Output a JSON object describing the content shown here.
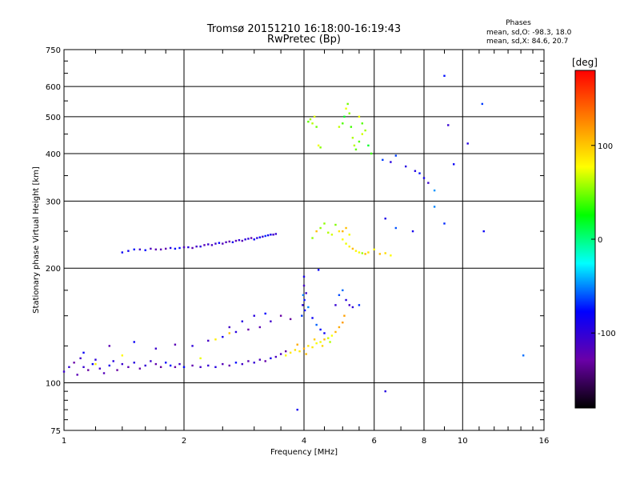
{
  "chart_data": {
    "type": "scatter",
    "title": "Tromsø 20151210 16:18:00-16:19:43",
    "subtitle": "RwPretec (Bp)",
    "stats": {
      "heading": "Phases",
      "line_o": "mean, sd,O: -98.3, 18.0",
      "line_x": "mean, sd,X: 84.6, 20.7"
    },
    "xlabel": "Frequency [MHz]",
    "ylabel": "Stationary phase Virtual Height [km]",
    "x_scale": "log",
    "y_scale": "log",
    "xlim": [
      1,
      16
    ],
    "ylim": [
      75,
      750
    ],
    "x_ticks": [
      1,
      2,
      4,
      6,
      8,
      10,
      16
    ],
    "x_tick_labels": [
      "1",
      "2",
      "4",
      "6",
      "8",
      "10",
      "16"
    ],
    "y_ticks": [
      75,
      100,
      200,
      300,
      400,
      500,
      600,
      750
    ],
    "y_tick_labels": [
      "75",
      "100",
      "200",
      "300",
      "400",
      "500",
      "600",
      "750"
    ],
    "grid": true,
    "colorbar": {
      "label": "[deg]",
      "min": -180,
      "max": 180,
      "ticks": [
        100,
        0,
        -100
      ],
      "tick_labels": [
        "100",
        "0",
        "-100"
      ],
      "stops": [
        "#000000",
        "#6a00a8",
        "#0000ff",
        "#00ffff",
        "#00ff00",
        "#ffff00",
        "#ff8000",
        "#ff0000"
      ]
    },
    "series": [
      {
        "trace": "low_blue_echo",
        "phase": -105,
        "points": [
          [
            1.0,
            107
          ],
          [
            1.03,
            110
          ],
          [
            1.06,
            113
          ],
          [
            1.08,
            105
          ],
          [
            1.1,
            116
          ],
          [
            1.12,
            110
          ],
          [
            1.15,
            108
          ],
          [
            1.18,
            112
          ],
          [
            1.2,
            115
          ],
          [
            1.23,
            109
          ],
          [
            1.26,
            106
          ],
          [
            1.3,
            111
          ],
          [
            1.33,
            114
          ],
          [
            1.36,
            108
          ],
          [
            1.4,
            112
          ],
          [
            1.45,
            110
          ],
          [
            1.5,
            113
          ],
          [
            1.55,
            109
          ],
          [
            1.6,
            111
          ],
          [
            1.65,
            114
          ],
          [
            1.7,
            112
          ],
          [
            1.75,
            110
          ],
          [
            1.8,
            113
          ],
          [
            1.85,
            111
          ],
          [
            1.9,
            110
          ],
          [
            1.95,
            112
          ],
          [
            2.0,
            110
          ],
          [
            2.1,
            111
          ],
          [
            2.2,
            110
          ],
          [
            2.3,
            111
          ],
          [
            2.4,
            110
          ],
          [
            2.5,
            112
          ],
          [
            2.6,
            111
          ],
          [
            2.7,
            113
          ],
          [
            2.8,
            112
          ],
          [
            2.9,
            114
          ],
          [
            3.0,
            113
          ],
          [
            3.1,
            115
          ],
          [
            3.2,
            114
          ],
          [
            3.3,
            116
          ],
          [
            3.4,
            117
          ],
          [
            3.5,
            119
          ],
          [
            3.6,
            121
          ],
          [
            1.12,
            120
          ],
          [
            1.3,
            125
          ],
          [
            1.5,
            128
          ],
          [
            1.7,
            123
          ],
          [
            1.9,
            126
          ],
          [
            2.1,
            125
          ],
          [
            2.3,
            129
          ],
          [
            2.5,
            132
          ],
          [
            2.7,
            136
          ],
          [
            2.9,
            138
          ],
          [
            3.1,
            140
          ],
          [
            3.3,
            145
          ],
          [
            3.5,
            150
          ],
          [
            3.7,
            147
          ],
          [
            2.6,
            140
          ],
          [
            2.8,
            145
          ],
          [
            3.0,
            150
          ],
          [
            3.2,
            152
          ]
        ]
      },
      {
        "trace": "low_yellow_echo",
        "phase": 90,
        "points": [
          [
            3.6,
            118
          ],
          [
            3.7,
            120
          ],
          [
            3.8,
            122
          ],
          [
            3.9,
            121
          ],
          [
            4.0,
            123
          ],
          [
            4.1,
            125
          ],
          [
            4.2,
            124
          ],
          [
            4.3,
            127
          ],
          [
            4.4,
            128
          ],
          [
            4.5,
            130
          ],
          [
            4.6,
            131
          ],
          [
            4.7,
            133
          ],
          [
            4.8,
            136
          ],
          [
            4.9,
            140
          ],
          [
            5.0,
            144
          ],
          [
            5.05,
            150
          ],
          [
            3.85,
            126
          ],
          [
            4.05,
            119
          ],
          [
            4.25,
            130
          ],
          [
            4.45,
            125
          ],
          [
            4.65,
            128
          ],
          [
            1.4,
            118
          ],
          [
            1.2,
            112
          ],
          [
            2.2,
            116
          ],
          [
            2.4,
            130
          ],
          [
            2.6,
            135
          ]
        ]
      },
      {
        "trace": "vertical_rise",
        "phase": -80,
        "points": [
          [
            3.95,
            150
          ],
          [
            3.97,
            160
          ],
          [
            3.98,
            170
          ],
          [
            4.0,
            180
          ],
          [
            4.0,
            190
          ],
          [
            4.01,
            165
          ],
          [
            4.02,
            155
          ],
          [
            4.05,
            172
          ],
          [
            4.1,
            158
          ],
          [
            4.2,
            148
          ],
          [
            4.3,
            142
          ],
          [
            4.4,
            138
          ],
          [
            4.5,
            135
          ],
          [
            4.8,
            160
          ],
          [
            4.9,
            170
          ],
          [
            5.0,
            175
          ],
          [
            5.1,
            165
          ],
          [
            5.2,
            160
          ],
          [
            5.3,
            158
          ],
          [
            5.5,
            160
          ]
        ]
      },
      {
        "trace": "f_layer_trace",
        "phase": -95,
        "points": [
          [
            1.4,
            220
          ],
          [
            1.45,
            222
          ],
          [
            1.5,
            224
          ],
          [
            1.55,
            224
          ],
          [
            1.6,
            223
          ],
          [
            1.65,
            225
          ],
          [
            1.7,
            224
          ],
          [
            1.75,
            224
          ],
          [
            1.8,
            225
          ],
          [
            1.85,
            226
          ],
          [
            1.9,
            225
          ],
          [
            1.95,
            226
          ],
          [
            2.0,
            227
          ],
          [
            2.05,
            227
          ],
          [
            2.1,
            226
          ],
          [
            2.15,
            228
          ],
          [
            2.2,
            228
          ],
          [
            2.25,
            230
          ],
          [
            2.3,
            231
          ],
          [
            2.35,
            230
          ],
          [
            2.4,
            232
          ],
          [
            2.45,
            233
          ],
          [
            2.5,
            232
          ],
          [
            2.55,
            234
          ],
          [
            2.6,
            235
          ],
          [
            2.65,
            234
          ],
          [
            2.7,
            236
          ],
          [
            2.75,
            237
          ],
          [
            2.8,
            236
          ],
          [
            2.85,
            238
          ],
          [
            2.9,
            239
          ],
          [
            2.95,
            240
          ],
          [
            3.0,
            238
          ],
          [
            3.05,
            240
          ],
          [
            3.1,
            241
          ],
          [
            3.15,
            242
          ],
          [
            3.2,
            243
          ],
          [
            3.25,
            244
          ],
          [
            3.3,
            245
          ],
          [
            3.35,
            245
          ],
          [
            3.4,
            246
          ]
        ]
      },
      {
        "trace": "scatter_4_to_6mhz_lower",
        "phase": 80,
        "points": [
          [
            4.2,
            240
          ],
          [
            4.3,
            250
          ],
          [
            4.4,
            255
          ],
          [
            4.5,
            262
          ],
          [
            4.6,
            248
          ],
          [
            4.7,
            245
          ],
          [
            4.8,
            260
          ],
          [
            4.9,
            250
          ],
          [
            5.0,
            238
          ],
          [
            5.1,
            232
          ],
          [
            5.2,
            228
          ],
          [
            5.3,
            225
          ],
          [
            5.4,
            222
          ],
          [
            5.5,
            220
          ],
          [
            5.6,
            219
          ],
          [
            5.7,
            218
          ],
          [
            5.8,
            220
          ],
          [
            6.0,
            224
          ],
          [
            6.2,
            218
          ],
          [
            6.4,
            219
          ],
          [
            6.6,
            216
          ],
          [
            5.0,
            250
          ],
          [
            5.1,
            255
          ],
          [
            5.2,
            245
          ]
        ]
      },
      {
        "trace": "scatter_4_to_6mhz_upper",
        "phase": 45,
        "points": [
          [
            4.1,
            485
          ],
          [
            4.15,
            492
          ],
          [
            4.2,
            480
          ],
          [
            4.25,
            500
          ],
          [
            4.3,
            470
          ],
          [
            4.35,
            420
          ],
          [
            4.4,
            415
          ],
          [
            4.9,
            470
          ],
          [
            5.0,
            480
          ],
          [
            5.05,
            500
          ],
          [
            5.1,
            525
          ],
          [
            5.15,
            540
          ],
          [
            5.2,
            510
          ],
          [
            5.25,
            470
          ],
          [
            5.3,
            440
          ],
          [
            5.35,
            420
          ],
          [
            5.4,
            410
          ],
          [
            5.5,
            430
          ],
          [
            5.6,
            450
          ],
          [
            5.7,
            460
          ],
          [
            5.8,
            420
          ],
          [
            5.9,
            400
          ],
          [
            5.6,
            480
          ],
          [
            5.5,
            500
          ]
        ]
      },
      {
        "trace": "sparse_high",
        "phase": -75,
        "points": [
          [
            6.3,
            385
          ],
          [
            6.6,
            380
          ],
          [
            6.8,
            395
          ],
          [
            7.2,
            370
          ],
          [
            7.6,
            360
          ],
          [
            7.8,
            355
          ],
          [
            8.0,
            345
          ],
          [
            8.2,
            335
          ],
          [
            8.5,
            320
          ],
          [
            9.0,
            640
          ],
          [
            9.2,
            475
          ],
          [
            9.5,
            375
          ],
          [
            10.3,
            425
          ],
          [
            11.2,
            540
          ],
          [
            6.4,
            270
          ],
          [
            6.8,
            255
          ],
          [
            7.5,
            250
          ],
          [
            8.5,
            290
          ],
          [
            9.0,
            262
          ],
          [
            11.3,
            250
          ],
          [
            14.2,
            118
          ],
          [
            6.4,
            95
          ],
          [
            3.85,
            85
          ],
          [
            4.35,
            198
          ]
        ]
      }
    ]
  }
}
